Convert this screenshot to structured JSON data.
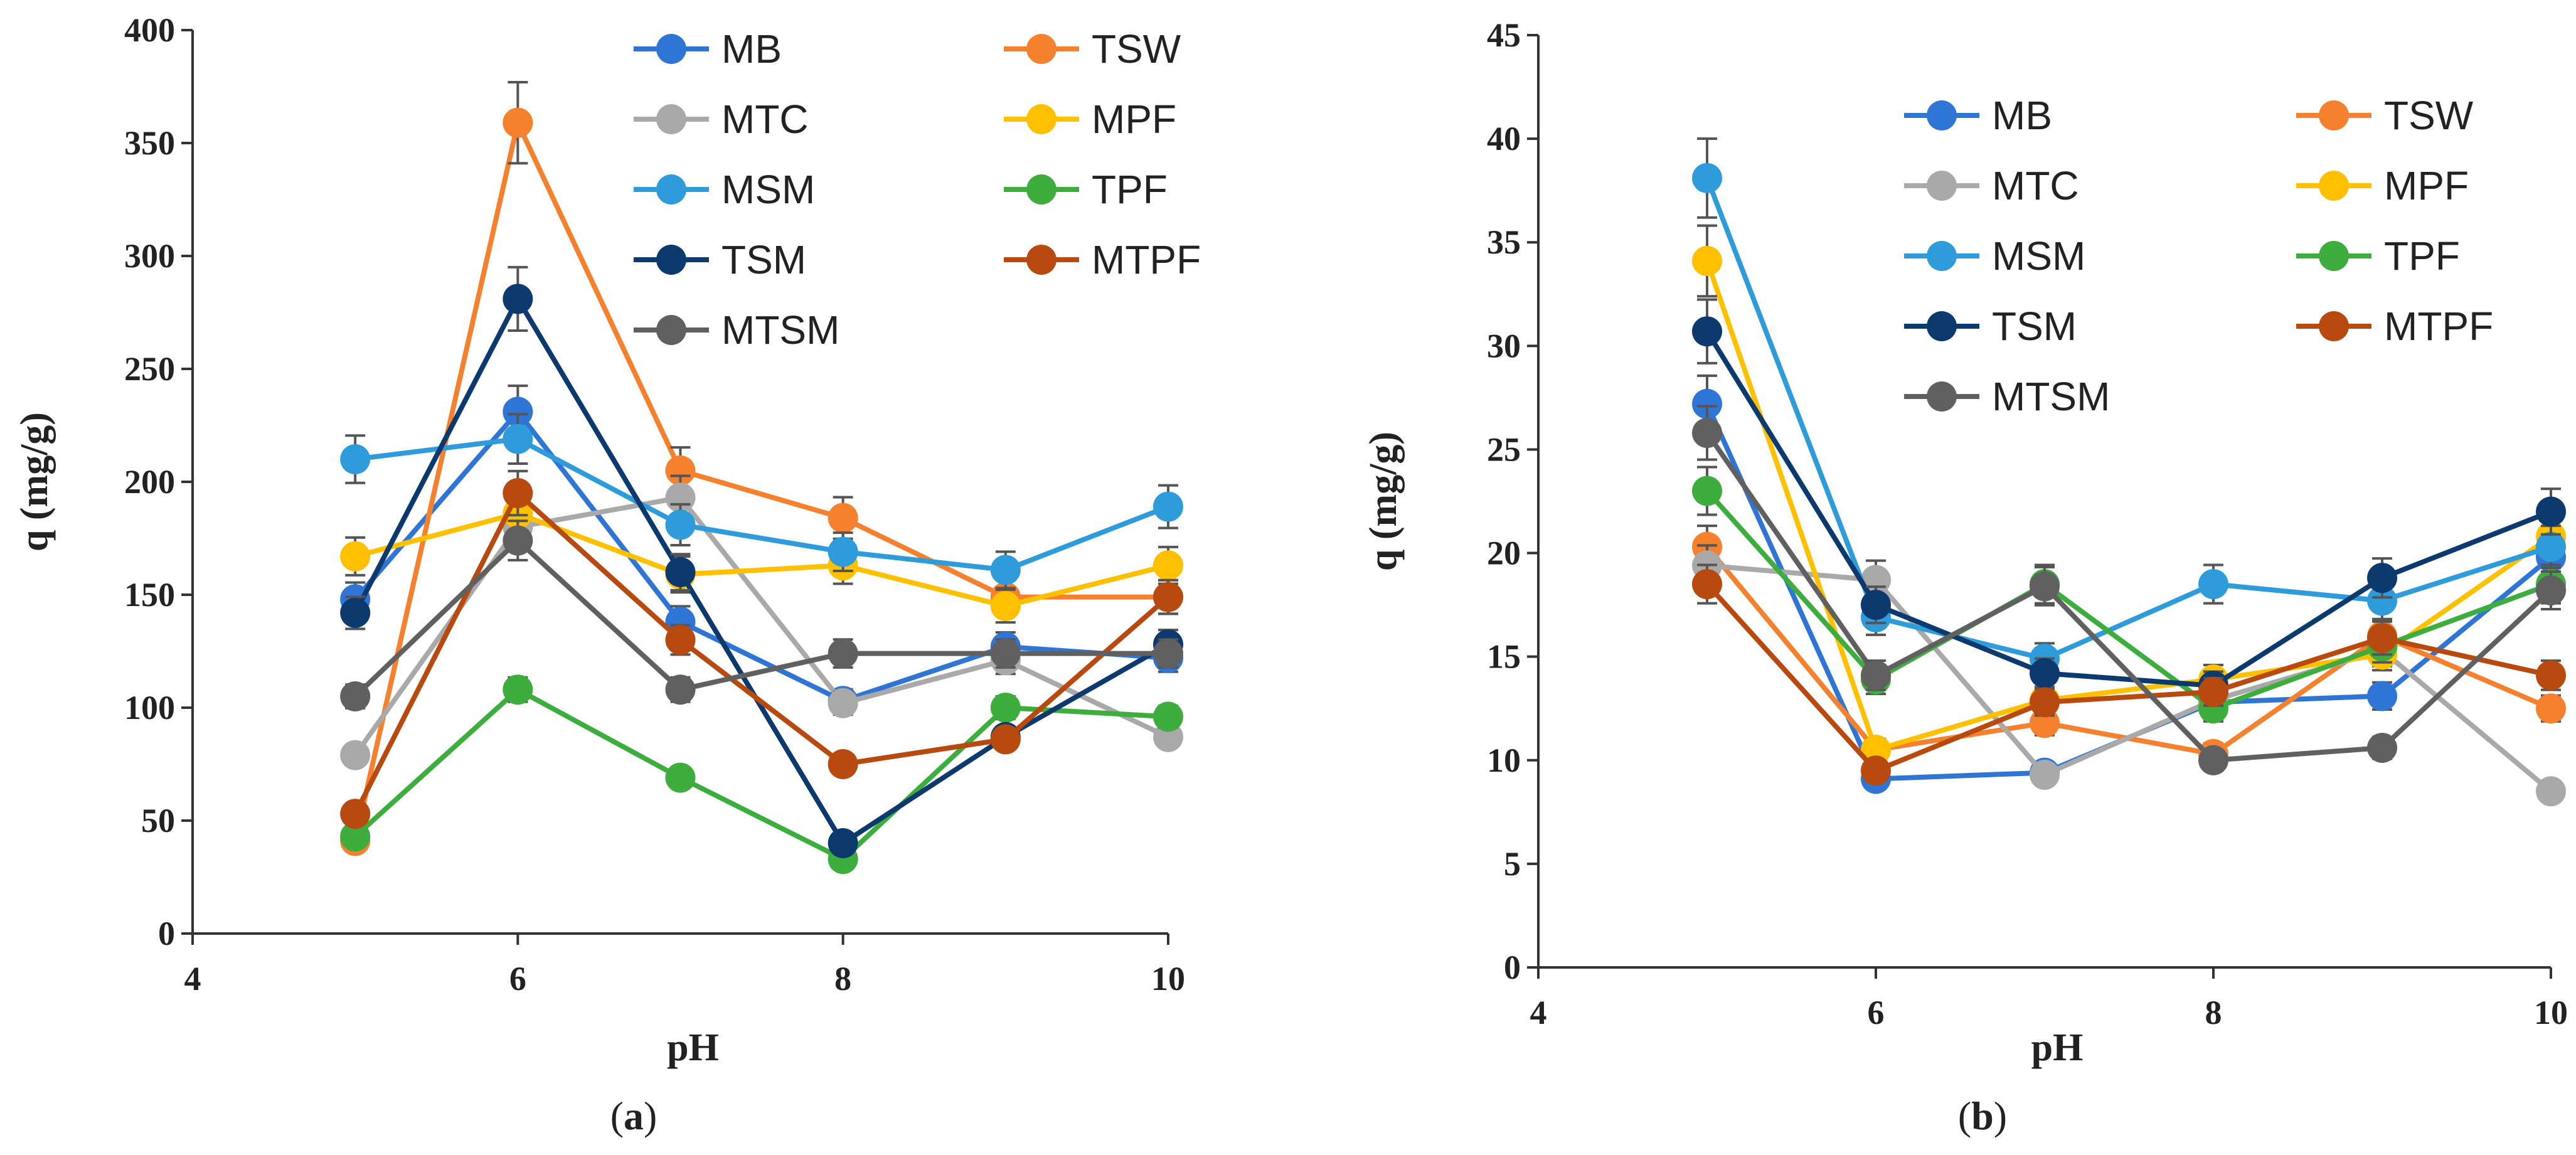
{
  "chart_data": [
    {
      "type": "line",
      "panel": "a",
      "caption": "(a)",
      "bold_letter": "a",
      "title": "",
      "xlabel": "pH",
      "ylabel": "q (mg/g)",
      "x": [
        5,
        6,
        7,
        8,
        9,
        10
      ],
      "xlim": [
        4,
        10
      ],
      "xticks": [
        4,
        6,
        8,
        10
      ],
      "ylim": [
        0,
        400
      ],
      "yticks": [
        0,
        50,
        100,
        150,
        200,
        250,
        300,
        350,
        400
      ],
      "legend_position": "top-right",
      "legend_columns": 2,
      "error_bar_fraction": 0.05,
      "series": [
        {
          "name": "MB",
          "color": "#2E75D6",
          "values": [
            148,
            231,
            138,
            103,
            127,
            122
          ]
        },
        {
          "name": "TSW",
          "color": "#F5812E",
          "values": [
            41,
            359,
            205,
            184,
            149,
            149
          ]
        },
        {
          "name": "MTC",
          "color": "#A9A9A9",
          "values": [
            79,
            180,
            193,
            102,
            121,
            87
          ]
        },
        {
          "name": "MPF",
          "color": "#FFC000",
          "values": [
            167,
            186,
            159,
            163,
            145,
            163
          ]
        },
        {
          "name": "MSM",
          "color": "#2E9CDB",
          "values": [
            210,
            219,
            181,
            169,
            161,
            189
          ]
        },
        {
          "name": "TPF",
          "color": "#3DAE3D",
          "values": [
            43,
            108,
            69,
            33,
            100,
            96
          ]
        },
        {
          "name": "TSM",
          "color": "#0D3A6E",
          "values": [
            142,
            281,
            160,
            40,
            87,
            128
          ]
        },
        {
          "name": "MTPF",
          "color": "#B84A0F",
          "values": [
            53,
            195,
            130,
            75,
            86,
            149
          ]
        },
        {
          "name": "MTSM",
          "color": "#606060",
          "values": [
            105,
            174,
            108,
            124,
            124,
            124
          ]
        }
      ]
    },
    {
      "type": "line",
      "panel": "b",
      "caption": "(b)",
      "bold_letter": "b",
      "title": "",
      "xlabel": "pH",
      "ylabel": "q (mg/g)",
      "x": [
        5,
        6,
        7,
        8,
        9,
        10
      ],
      "xlim": [
        4,
        10
      ],
      "xticks": [
        4,
        6,
        8,
        10
      ],
      "ylim": [
        0,
        45
      ],
      "yticks": [
        0,
        5,
        10,
        15,
        20,
        25,
        30,
        35,
        40,
        45
      ],
      "legend_position": "top-right",
      "legend_columns": 2,
      "error_bar_fraction": 0.05,
      "series": [
        {
          "name": "MB",
          "color": "#2E75D6",
          "values": [
            27.2,
            9.1,
            9.4,
            12.8,
            13.1,
            19.8
          ]
        },
        {
          "name": "TSW",
          "color": "#F5812E",
          "values": [
            20.3,
            10.5,
            11.8,
            10.3,
            16.0,
            12.5
          ]
        },
        {
          "name": "MTC",
          "color": "#A9A9A9",
          "values": [
            19.4,
            18.7,
            9.3,
            12.9,
            15.3,
            8.5
          ]
        },
        {
          "name": "MPF",
          "color": "#FFC000",
          "values": [
            34.1,
            10.5,
            12.9,
            13.9,
            15.1,
            20.8
          ]
        },
        {
          "name": "MSM",
          "color": "#2E9CDB",
          "values": [
            38.1,
            16.9,
            14.9,
            18.5,
            17.7,
            20.3
          ]
        },
        {
          "name": "TPF",
          "color": "#3DAE3D",
          "values": [
            23.0,
            13.9,
            18.5,
            12.5,
            15.5,
            18.5
          ]
        },
        {
          "name": "TSM",
          "color": "#0D3A6E",
          "values": [
            30.7,
            17.5,
            14.2,
            13.6,
            18.8,
            22.0
          ]
        },
        {
          "name": "MTPF",
          "color": "#B84A0F",
          "values": [
            18.5,
            9.5,
            12.8,
            13.3,
            15.9,
            14.1
          ]
        },
        {
          "name": "MTSM",
          "color": "#606060",
          "values": [
            25.8,
            14.1,
            18.4,
            10.0,
            10.6,
            18.2
          ]
        }
      ]
    }
  ]
}
